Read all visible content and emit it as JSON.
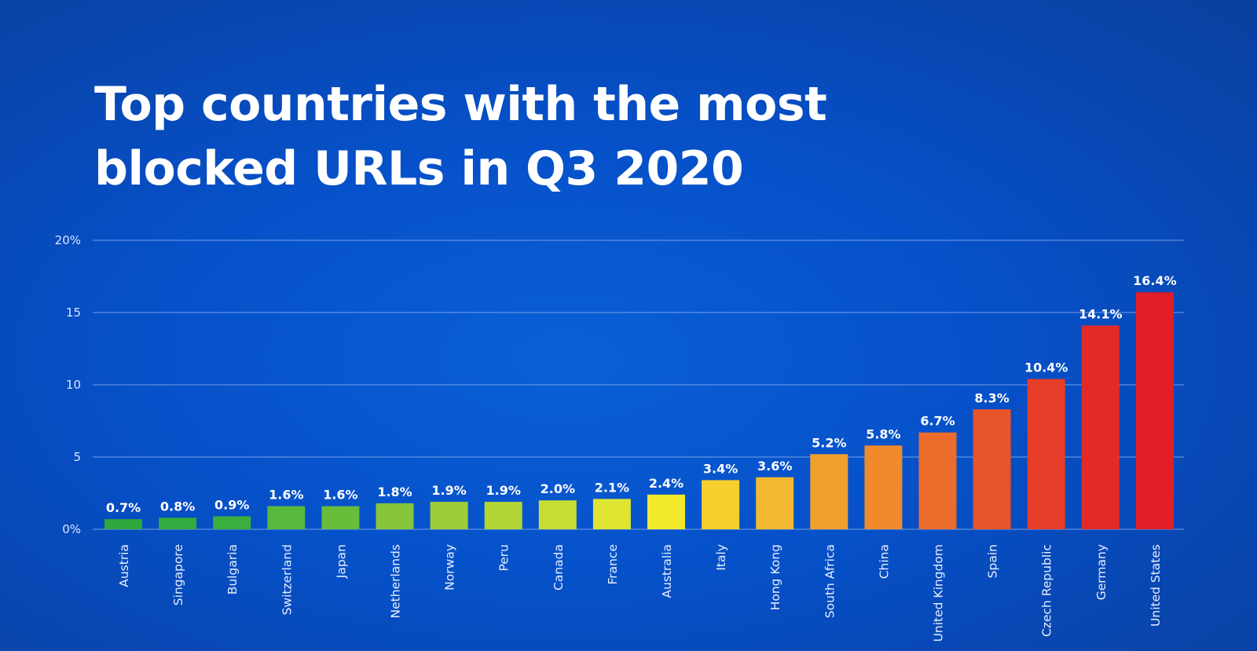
{
  "title_lines": [
    "Top countries with the most",
    "blocked URLs in Q3 2020"
  ],
  "chart_data": {
    "type": "bar",
    "title": "Top countries with the most blocked URLs in Q3 2020",
    "categories": [
      "Austria",
      "Singapore",
      "Bulgaria",
      "Switzerland",
      "Japan",
      "Netherlands",
      "Norway",
      "Peru",
      "Canada",
      "France",
      "Australia",
      "Italy",
      "Hong Kong",
      "South Africa",
      "China",
      "United Kingdom",
      "Spain",
      "Czech Republic",
      "Germany",
      "United States"
    ],
    "values": [
      0.7,
      0.8,
      0.9,
      1.6,
      1.6,
      1.8,
      1.9,
      1.9,
      2.0,
      2.1,
      2.4,
      3.4,
      3.6,
      5.2,
      5.8,
      6.7,
      8.3,
      10.4,
      14.1,
      16.4
    ],
    "value_labels": [
      "0.7%",
      "0.8%",
      "0.9%",
      "1.6%",
      "1.6%",
      "1.8%",
      "1.9%",
      "1.9%",
      "2.0%",
      "2.1%",
      "2.4%",
      "3.4%",
      "3.6%",
      "5.2%",
      "5.8%",
      "6.7%",
      "8.3%",
      "10.4%",
      "14.1%",
      "16.4%"
    ],
    "bar_colors": [
      "#2fa83e",
      "#34ab3e",
      "#3aae3e",
      "#5ab83c",
      "#68bd3b",
      "#86c53a",
      "#9fcd37",
      "#b3d535",
      "#c8dd33",
      "#dde531",
      "#f2e92c",
      "#f6cf2e",
      "#f4b730",
      "#f2a02d",
      "#f08a2c",
      "#ec6d2b",
      "#e8542a",
      "#e63e29",
      "#e42a28",
      "#e31d27"
    ],
    "ylim": [
      0,
      20
    ],
    "y_ticks": [
      0,
      5,
      10,
      15,
      20
    ],
    "y_tick_labels": [
      "0%",
      "5",
      "10",
      "15",
      "20%"
    ],
    "grid": true,
    "xlabel": "",
    "ylabel": ""
  }
}
